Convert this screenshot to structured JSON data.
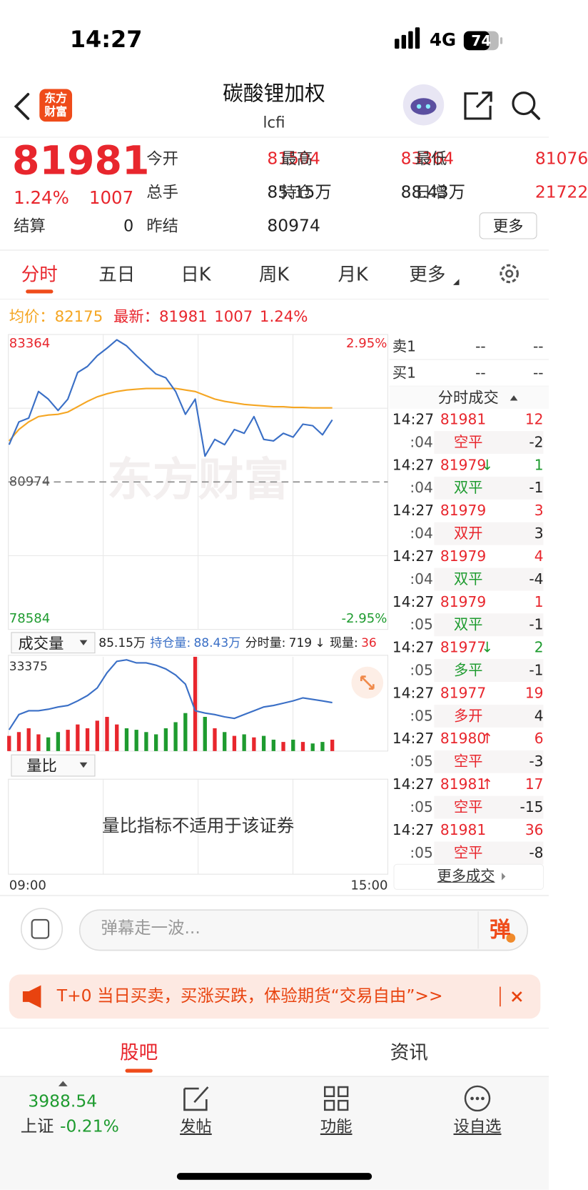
{
  "status": {
    "time": "14:27",
    "network": "4G",
    "battery": "74"
  },
  "header": {
    "logo": "东方财富",
    "title": "碳酸锂加权",
    "code": "lcfi"
  },
  "quote": {
    "last": 81981,
    "pct": "1.24%",
    "chg": 1007,
    "settle": {
      "label": "结算",
      "value": 0
    },
    "fields": [
      {
        "label": "今开",
        "value": 81504,
        "color": "red"
      },
      {
        "label": "最高",
        "value": 83364,
        "color": "red"
      },
      {
        "label": "最低",
        "value": 81076,
        "color": "red"
      },
      {
        "label": "总手",
        "value": "85.15万",
        "color": "black"
      },
      {
        "label": "持仓",
        "value": "88.43万",
        "color": "black"
      },
      {
        "label": "日增",
        "value": 21722,
        "color": "red"
      },
      {
        "label": "昨结",
        "value": 80974,
        "color": "black"
      }
    ],
    "more": "更多"
  },
  "tabs": {
    "items": [
      "分时",
      "五日",
      "日K",
      "周K",
      "月K",
      "更多"
    ],
    "active": 0
  },
  "info": {
    "avg_label": "均价：",
    "avg": 82175,
    "last_label": "最新：",
    "last": 81981,
    "chg": 1007,
    "pct": "1.24%"
  },
  "intraday": {
    "ylim": [
      78584,
      83364
    ],
    "yticks": [
      78584,
      80974,
      83364
    ],
    "pct_top": "2.95%",
    "pct_bottom": "-2.95%",
    "watermark": "东方财富",
    "price": [
      81578,
      81947,
      82009,
      82440,
      82317,
      82132,
      82317,
      82748,
      82847,
      83019,
      83142,
      83278,
      83179,
      83019,
      82871,
      82723,
      82662,
      82440,
      82070,
      82317,
      81393,
      81664,
      81578,
      81824,
      81762,
      82034,
      81664,
      81639,
      81762,
      81701,
      81910,
      81886,
      81738,
      81981
    ],
    "avg": [
      81639,
      81824,
      81947,
      82034,
      82058,
      82070,
      82107,
      82194,
      82280,
      82354,
      82403,
      82440,
      82465,
      82477,
      82489,
      82489,
      82489,
      82489,
      82465,
      82440,
      82378,
      82317,
      82280,
      82255,
      82231,
      82218,
      82206,
      82194,
      82194,
      82181,
      82181,
      82175,
      82175,
      82175
    ],
    "x_start": "09:00",
    "x_end": "15:00"
  },
  "volume": {
    "menu": "成交量",
    "total": "85.15万",
    "oi_label": "持仓量:",
    "oi": "88.43万",
    "minute_label": "分时量:",
    "minute": 719,
    "arrow": "↓",
    "cur_label": "现量:",
    "cur": 36,
    "ylim": [
      0,
      33375
    ],
    "yticks": [
      33375
    ],
    "values": [
      5380,
      6725,
      8070,
      5918,
      4842,
      6725,
      7532,
      9415,
      8070,
      10760,
      12105,
      9415,
      8070,
      7532,
      6725,
      5918,
      8070,
      10222,
      13450,
      33375,
      12105,
      8070,
      6725,
      5380,
      5918,
      4842,
      5380,
      4035,
      3228,
      4035,
      3228,
      2690,
      3228,
      4035
    ],
    "y2lim": [
      882400,
      886100
    ],
    "oi_values": [
      883236,
      883832,
      883982,
      883982,
      884041,
      884131,
      884190,
      884369,
      884578,
      884877,
      885474,
      885921,
      885981,
      885861,
      885861,
      885772,
      885623,
      885384,
      885026,
      883982,
      883892,
      883832,
      883743,
      883683,
      883832,
      883982,
      884131,
      884190,
      884280,
      884369,
      884489,
      884429,
      884369,
      884300
    ]
  },
  "ratio": {
    "menu": "量比",
    "message": "量比指标不适用于该证券"
  },
  "book": [
    {
      "side": "卖1",
      "price": "--",
      "qty": "--"
    },
    {
      "side": "买1",
      "price": "--",
      "qty": "--"
    }
  ],
  "trades_title": "分时成交",
  "trades": [
    {
      "time": "14:27",
      "price": 81981,
      "qty": 12,
      "qty_color": "red",
      "sec": ":04",
      "kind": "空平",
      "kind_color": "red",
      "change": -2
    },
    {
      "time": "14:27",
      "price": 81979,
      "arrow": "↓",
      "arrow_color": "green",
      "qty": 1,
      "qty_color": "green",
      "sec": ":04",
      "kind": "双平",
      "kind_color": "green",
      "change": -1
    },
    {
      "time": "14:27",
      "price": 81979,
      "qty": 3,
      "qty_color": "red",
      "sec": ":04",
      "kind": "双开",
      "kind_color": "red",
      "change": 3
    },
    {
      "time": "14:27",
      "price": 81979,
      "qty": 4,
      "qty_color": "red",
      "sec": ":04",
      "kind": "双平",
      "kind_color": "green",
      "change": -4
    },
    {
      "time": "14:27",
      "price": 81979,
      "qty": 1,
      "qty_color": "red",
      "sec": ":05",
      "kind": "双平",
      "kind_color": "green",
      "change": -1
    },
    {
      "time": "14:27",
      "price": 81977,
      "arrow": "↓",
      "arrow_color": "green",
      "qty": 2,
      "qty_color": "green",
      "sec": ":05",
      "kind": "多平",
      "kind_color": "green",
      "change": -1
    },
    {
      "time": "14:27",
      "price": 81977,
      "qty": 19,
      "qty_color": "red",
      "sec": ":05",
      "kind": "多开",
      "kind_color": "red",
      "change": 4
    },
    {
      "time": "14:27",
      "price": 81980,
      "arrow": "↑",
      "arrow_color": "red",
      "qty": 6,
      "qty_color": "red",
      "sec": ":05",
      "kind": "空平",
      "kind_color": "red",
      "change": -3
    },
    {
      "time": "14:27",
      "price": 81981,
      "arrow": "↑",
      "arrow_color": "red",
      "qty": 17,
      "qty_color": "red",
      "sec": ":05",
      "kind": "空平",
      "kind_color": "red",
      "change": -15
    },
    {
      "time": "14:27",
      "price": 81981,
      "qty": 36,
      "qty_color": "red",
      "sec": ":05",
      "kind": "空平",
      "kind_color": "red",
      "change": -8
    }
  ],
  "trades_more": "更多成交",
  "comment": {
    "placeholder": "弹幕走一波...",
    "button": "弹"
  },
  "banner": "T+0 当日买卖，买涨买跌，体验期货“交易自由”>>",
  "bottom_tabs": {
    "items": [
      "股吧",
      "资讯"
    ],
    "active": 0
  },
  "index": {
    "value": 3988.54,
    "name": "上证",
    "pct": "-0.21%"
  },
  "nav": [
    "发帖",
    "功能",
    "设自选"
  ]
}
